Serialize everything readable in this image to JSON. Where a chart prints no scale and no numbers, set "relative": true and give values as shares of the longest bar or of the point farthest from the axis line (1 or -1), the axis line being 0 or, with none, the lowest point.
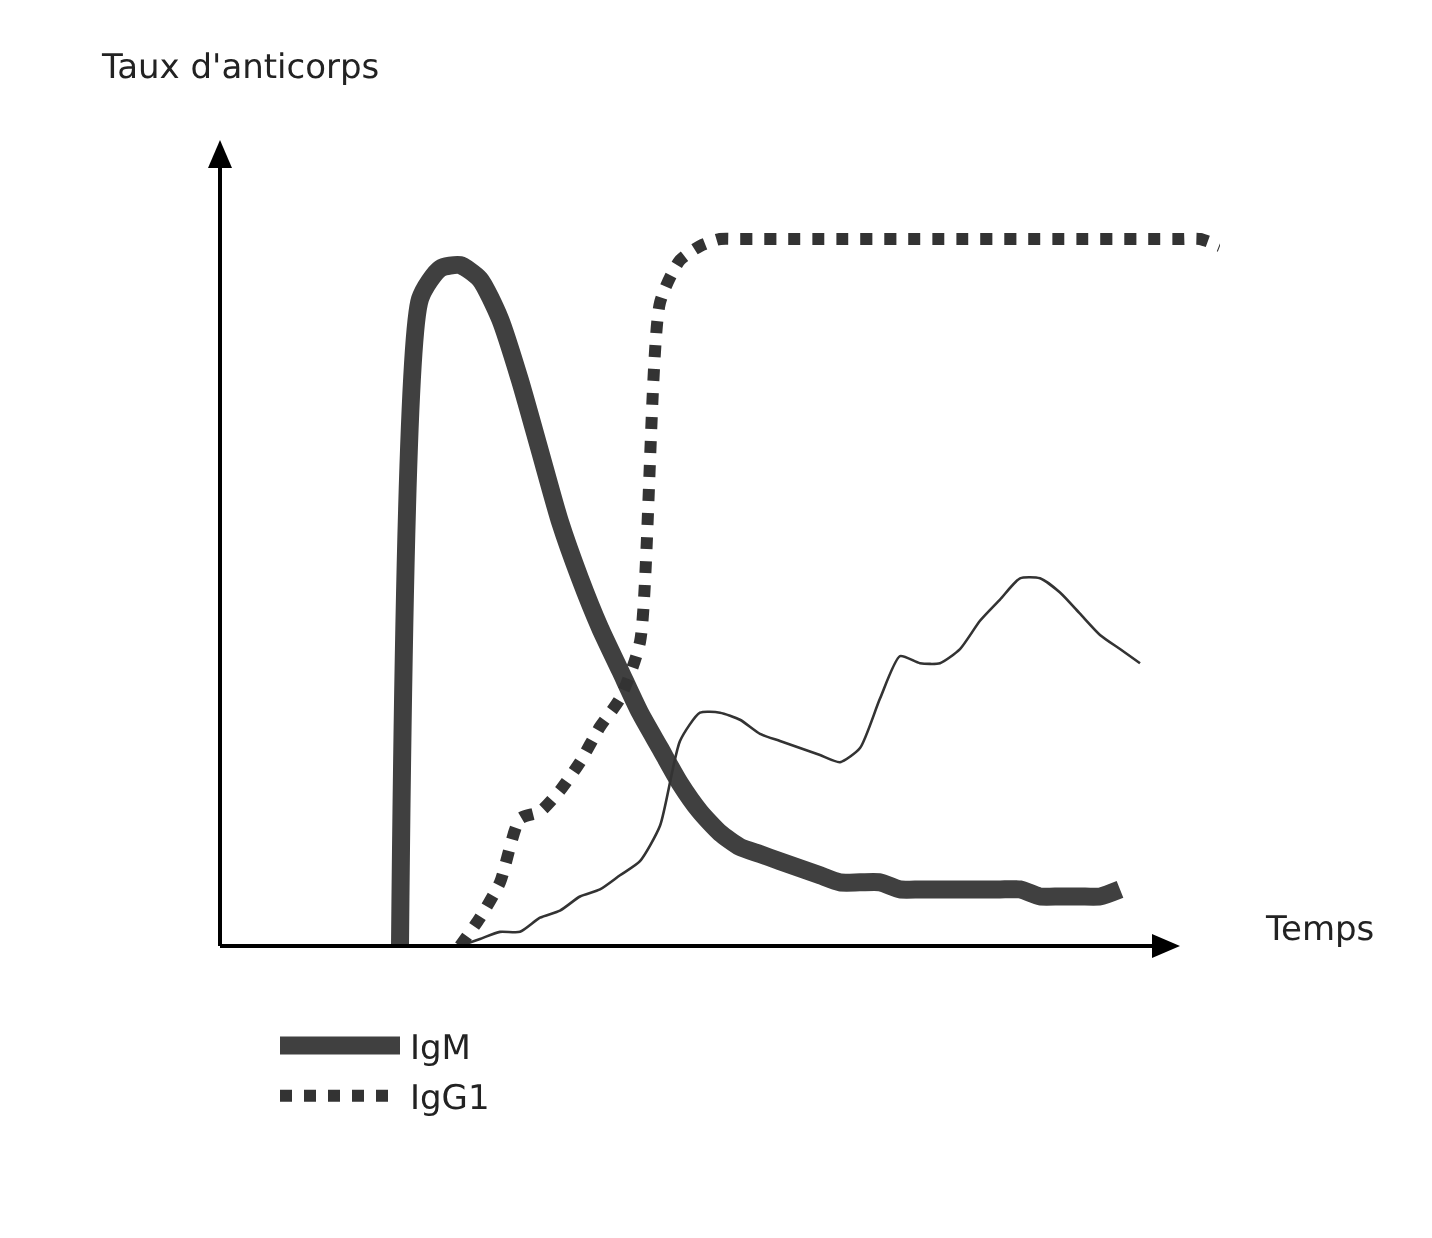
{
  "chart_data": {
    "type": "line",
    "relative": true,
    "xlabel": "Temps",
    "ylabel": "Taux d'anticorps",
    "legend": "bottom left",
    "categories": [
      null,
      null,
      null,
      null,
      null,
      null,
      null,
      null,
      null,
      null,
      null,
      null,
      null,
      null,
      null,
      null,
      null,
      null,
      null,
      null,
      null,
      null,
      null,
      null,
      null,
      null,
      null,
      null,
      null,
      null,
      null,
      null,
      null,
      null,
      null,
      null,
      null,
      null,
      null,
      null,
      null,
      null,
      null,
      null,
      null,
      null,
      null,
      null,
      null,
      null,
      null
    ],
    "series": [
      {
        "name": "IgM",
        "color": "#404040",
        "line_style": "solid",
        "values": [
          null,
          null,
          null,
          null,
          null,
          null,
          null,
          null,
          null,
          0,
          0.915,
          0.958,
          0.963,
          0.943,
          0.887,
          0.8,
          0.7,
          0.6,
          0.52,
          0.45,
          0.39,
          0.33,
          0.28,
          0.23,
          0.19,
          0.16,
          0.14,
          0.13,
          0.12,
          0.11,
          0.1,
          0.09,
          0.09,
          0.09,
          0.08,
          0.08,
          0.08,
          0.08,
          0.08,
          0.08,
          0.08,
          0.07,
          0.07,
          0.07,
          0.07,
          0.08,
          null,
          null,
          null,
          null,
          null
        ]
      },
      {
        "name": "IgG1",
        "color": "#333333",
        "line_style": "dotted",
        "values": [
          null,
          null,
          null,
          null,
          null,
          null,
          null,
          null,
          null,
          null,
          null,
          null,
          0,
          0.04,
          0.09,
          0.18,
          0.19,
          0.22,
          0.26,
          0.31,
          0.35,
          0.43,
          0.91,
          0.97,
          0.99,
          1,
          1,
          1,
          1,
          1,
          1,
          1,
          1,
          1,
          1,
          1,
          1,
          1,
          1,
          1,
          1,
          1,
          1,
          1,
          1,
          1,
          1,
          1,
          1,
          1,
          0.99
        ]
      },
      {
        "color": "#333333",
        "line_style": "solid",
        "values": [
          null,
          null,
          null,
          null,
          null,
          null,
          null,
          null,
          null,
          null,
          null,
          null,
          0,
          0.01,
          0.02,
          0.02,
          0.04,
          0.05,
          0.07,
          0.08,
          0.1,
          0.12,
          0.17,
          0.29,
          0.33,
          0.33,
          0.32,
          0.3,
          0.29,
          0.28,
          0.27,
          0.26,
          0.28,
          0.35,
          0.41,
          0.4,
          0.4,
          0.42,
          0.46,
          0.49,
          0.52,
          0.52,
          0.5,
          0.47,
          0.44,
          0.42,
          0.4,
          null,
          null,
          null,
          null
        ]
      }
    ]
  }
}
